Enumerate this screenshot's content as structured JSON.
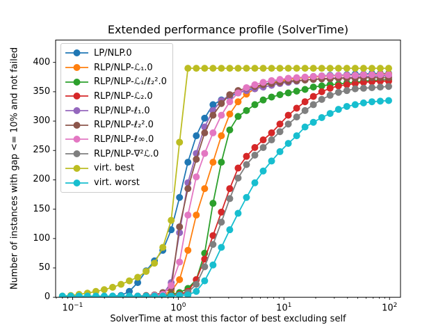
{
  "chart": {
    "title": "Extended performance profile (SolverTime)",
    "xlabel": "SolverTime at most this factor of best excluding self",
    "ylabel": "Number of instances with gap <= 10% and not failed"
  },
  "chart_data": {
    "type": "line",
    "marker": "circle",
    "x_scale": "log",
    "grid": false,
    "legend_position": "upper left",
    "xlim": [
      0.069,
      127
    ],
    "ylim": [
      0,
      438
    ],
    "x_ticks": [
      {
        "value": 0.1,
        "exp": "−1"
      },
      {
        "value": 1,
        "exp": "0"
      },
      {
        "value": 10,
        "exp": "1"
      },
      {
        "value": 100,
        "exp": "2"
      }
    ],
    "y_ticks": [
      0,
      50,
      100,
      150,
      200,
      250,
      300,
      350,
      400
    ],
    "x": [
      0.08,
      0.096,
      0.115,
      0.138,
      0.166,
      0.199,
      0.239,
      0.287,
      0.344,
      0.413,
      0.496,
      0.595,
      0.714,
      0.857,
      1.028,
      1.234,
      1.481,
      1.777,
      2.132,
      2.559,
      3.071,
      3.685,
      4.422,
      5.306,
      6.367,
      7.641,
      9.169,
      11.003,
      13.203,
      15.844,
      19.012,
      22.815,
      27.378,
      32.853,
      39.424,
      47.309,
      56.771,
      68.125,
      81.75,
      98.1
    ],
    "series": [
      {
        "name": "LP/NLP.0",
        "color": "#1f77b4",
        "values": [
          0,
          0,
          0,
          1,
          1,
          1,
          2,
          3,
          10,
          25,
          45,
          62,
          80,
          115,
          170,
          230,
          275,
          305,
          328,
          336,
          342,
          348,
          352,
          357,
          362,
          366,
          369,
          371,
          373,
          374,
          376,
          377,
          378,
          378,
          379,
          380,
          380,
          381,
          381,
          381
        ]
      },
      {
        "name": "RLP/NLP-ℒ₁.0",
        "color": "#ff7f0e",
        "values": [
          0,
          0,
          0,
          0,
          0,
          0,
          1,
          1,
          1,
          2,
          2,
          3,
          4,
          10,
          30,
          80,
          140,
          185,
          230,
          275,
          312,
          333,
          346,
          355,
          361,
          365,
          368,
          371,
          373,
          374,
          375,
          376,
          377,
          377,
          378,
          378,
          379,
          379,
          380,
          380
        ]
      },
      {
        "name": "RLP/NLP-ℒ₁/ℓ₂².0",
        "color": "#2ca02c",
        "values": [
          0,
          0,
          0,
          0,
          0,
          0,
          0,
          1,
          1,
          1,
          2,
          2,
          3,
          5,
          8,
          15,
          30,
          75,
          160,
          230,
          285,
          308,
          318,
          328,
          336,
          341,
          345,
          348,
          351,
          354,
          358,
          360,
          362,
          363,
          365,
          366,
          368,
          369,
          370,
          371
        ]
      },
      {
        "name": "RLP/NLP-ℒ₂.0",
        "color": "#d62728",
        "values": [
          0,
          0,
          0,
          0,
          0,
          0,
          0,
          0,
          1,
          1,
          1,
          2,
          2,
          3,
          5,
          10,
          30,
          65,
          105,
          145,
          185,
          220,
          240,
          255,
          268,
          280,
          295,
          310,
          322,
          333,
          342,
          350,
          356,
          360,
          362,
          364,
          366,
          367,
          368,
          368
        ]
      },
      {
        "name": "RLP/NLP-ℓ₁.0",
        "color": "#9467bd",
        "values": [
          0,
          0,
          0,
          0,
          0,
          0,
          1,
          1,
          1,
          2,
          2,
          3,
          5,
          25,
          110,
          195,
          245,
          290,
          318,
          335,
          344,
          348,
          352,
          355,
          358,
          361,
          364,
          366,
          368,
          370,
          371,
          372,
          373,
          374,
          374,
          375,
          376,
          376,
          377,
          377
        ]
      },
      {
        "name": "RLP/NLP-ℓ₂².0",
        "color": "#8c564b",
        "values": [
          0,
          0,
          0,
          0,
          0,
          0,
          1,
          1,
          2,
          2,
          3,
          4,
          8,
          15,
          120,
          185,
          235,
          280,
          310,
          330,
          345,
          352,
          356,
          359,
          362,
          364,
          366,
          368,
          369,
          370,
          371,
          372,
          372,
          373,
          373,
          373,
          374,
          374,
          374,
          374
        ]
      },
      {
        "name": "RLP/NLP-ℓ∞.0",
        "color": "#e377c2",
        "values": [
          0,
          0,
          0,
          0,
          0,
          0,
          1,
          1,
          1,
          2,
          2,
          3,
          5,
          20,
          60,
          140,
          205,
          245,
          280,
          310,
          333,
          348,
          357,
          362,
          366,
          369,
          371,
          373,
          374,
          375,
          376,
          377,
          377,
          378,
          378,
          378,
          379,
          379,
          379,
          379
        ]
      },
      {
        "name": "RLP/NLP-∇²ℒ.0",
        "color": "#7f7f7f",
        "values": [
          0,
          0,
          0,
          0,
          0,
          0,
          0,
          0,
          0,
          1,
          1,
          1,
          2,
          2,
          4,
          8,
          22,
          52,
          90,
          128,
          168,
          203,
          226,
          242,
          255,
          268,
          282,
          295,
          307,
          318,
          328,
          337,
          344,
          349,
          352,
          355,
          356,
          357,
          358,
          359
        ]
      },
      {
        "name": "virt. best",
        "color": "#bcbd22",
        "values": [
          2,
          3,
          5,
          7,
          10,
          13,
          17,
          22,
          28,
          34,
          44,
          58,
          85,
          131,
          264,
          390,
          390,
          390,
          390,
          390,
          390,
          390,
          390,
          390,
          390,
          390,
          390,
          390,
          390,
          390,
          390,
          390,
          390,
          390,
          390,
          390,
          390,
          390,
          390,
          390
        ]
      },
      {
        "name": "virt. worst",
        "color": "#17becf",
        "values": [
          2,
          2,
          2,
          2,
          2,
          2,
          2,
          2,
          2,
          2,
          2,
          2,
          2,
          2,
          3,
          4,
          10,
          28,
          55,
          85,
          115,
          143,
          170,
          195,
          215,
          232,
          248,
          262,
          275,
          290,
          298,
          306,
          313,
          320,
          325,
          328,
          331,
          333,
          334,
          335
        ]
      }
    ]
  }
}
